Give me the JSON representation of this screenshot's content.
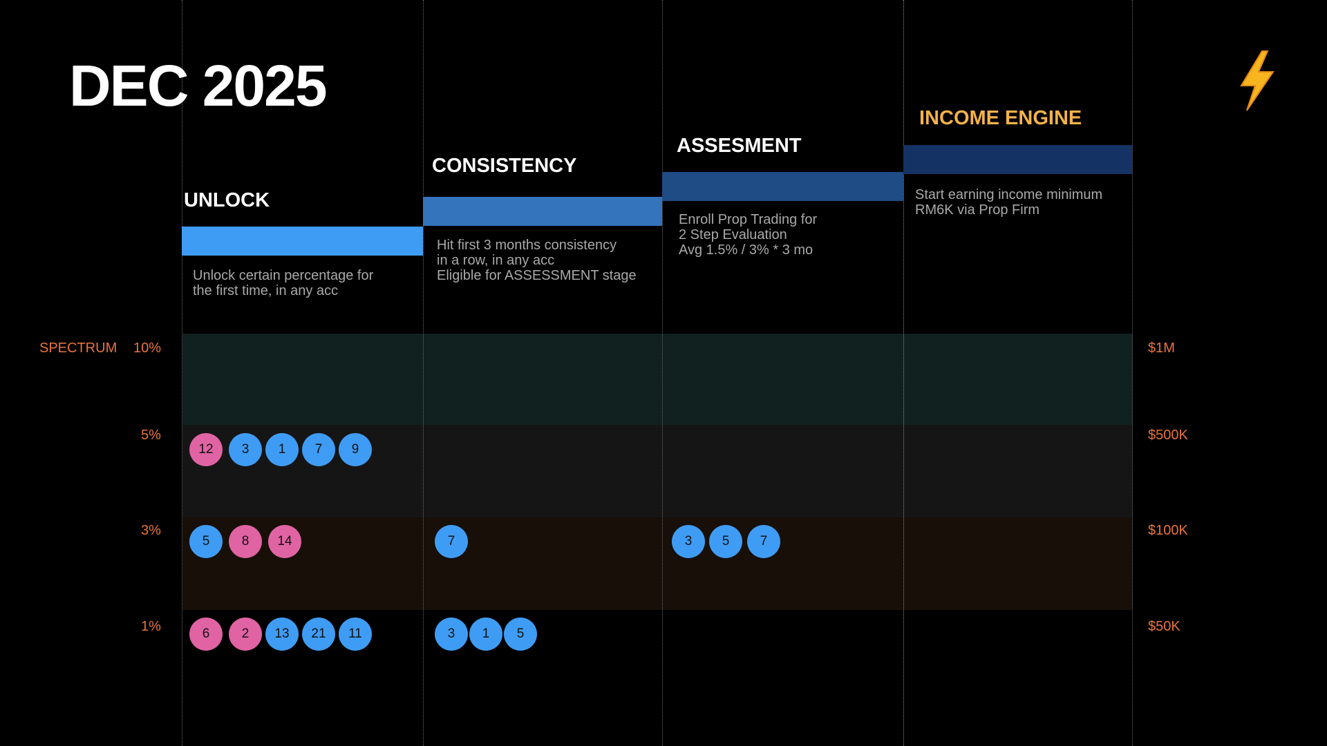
{
  "slide": {
    "title": "DEC 2025",
    "icon": "lightning-bolt-icon"
  },
  "stages": [
    {
      "key": "unlock",
      "title": "UNLOCK",
      "color": "#3f9cf4",
      "description": "Unlock certain percentage for\nthe first time, in any acc"
    },
    {
      "key": "consistency",
      "title": "CONSISTENCY",
      "color": "#3474bc",
      "description": "Hit first 3 months consistency\nin a row, in any acc\nEligible for ASSESSMENT stage"
    },
    {
      "key": "assessment",
      "title": "ASSESMENT",
      "color": "#1f4c84",
      "description": "Enroll Prop Trading for\n2 Step Evaluation\nAvg 1.5% / 3% * 3 mo"
    },
    {
      "key": "income",
      "title": "INCOME ENGINE",
      "color": "#143263",
      "description": "Start earning income minimum\nRM6K via Prop Firm"
    }
  ],
  "spectrum_label": "SPECTRUM",
  "levels": [
    {
      "percent": "10%",
      "amount": "$1M",
      "band_color": "#10211f"
    },
    {
      "percent": "5%",
      "amount": "$500K",
      "band_color": "#151515"
    },
    {
      "percent": "3%",
      "amount": "$100K",
      "band_color": "#170f08"
    },
    {
      "percent": "1%",
      "amount": "$50K",
      "band_color": "#000000"
    }
  ],
  "colors": {
    "blue_marker": "#3f9cf4",
    "pink_marker": "#e063a3",
    "orange_text": "#e8743c",
    "gold": "#f3b24a"
  },
  "markers": {
    "unlock_5": [
      {
        "n": "12",
        "c": "pink"
      },
      {
        "n": "3",
        "c": "blue"
      },
      {
        "n": "1",
        "c": "blue"
      },
      {
        "n": "7",
        "c": "blue"
      },
      {
        "n": "9",
        "c": "blue"
      }
    ],
    "unlock_3": [
      {
        "n": "5",
        "c": "blue"
      },
      {
        "n": "8",
        "c": "pink"
      },
      {
        "n": "14",
        "c": "pink"
      }
    ],
    "unlock_1": [
      {
        "n": "6",
        "c": "pink"
      },
      {
        "n": "2",
        "c": "pink"
      },
      {
        "n": "13",
        "c": "blue"
      },
      {
        "n": "21",
        "c": "blue"
      },
      {
        "n": "11",
        "c": "blue"
      }
    ],
    "consistency_3": [
      {
        "n": "7",
        "c": "blue"
      }
    ],
    "consistency_1": [
      {
        "n": "3",
        "c": "blue"
      },
      {
        "n": "1",
        "c": "blue"
      },
      {
        "n": "5",
        "c": "blue"
      }
    ],
    "assessment_3": [
      {
        "n": "3",
        "c": "blue"
      },
      {
        "n": "5",
        "c": "blue"
      },
      {
        "n": "7",
        "c": "blue"
      }
    ]
  }
}
